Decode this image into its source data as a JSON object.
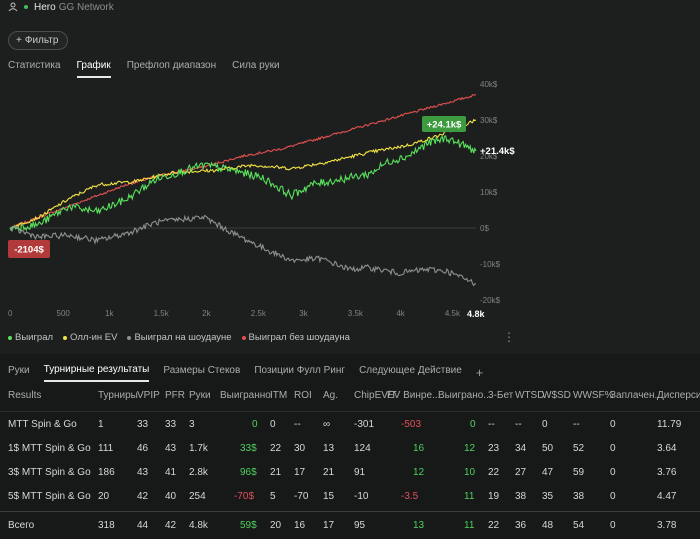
{
  "header": {
    "user": "Hero",
    "network": "GG Network"
  },
  "filter_label": "Фильтр",
  "top_tabs": [
    "Статистика",
    "График",
    "Префлоп диапазон",
    "Сила руки"
  ],
  "active_top_tab": 1,
  "legend": [
    {
      "label": "Выиграл",
      "color": "#59e15c"
    },
    {
      "label": "Олл-ин EV",
      "color": "#f3e343"
    },
    {
      "label": "Выиграл на шоудауне",
      "color": "#8f8f8f"
    },
    {
      "label": "Выиграл без шоудауна",
      "color": "#e45050"
    }
  ],
  "chart_data": {
    "type": "line",
    "x_ticks": [
      "0",
      "500",
      "1k",
      "1.5k",
      "2k",
      "2.5k",
      "3k",
      "3.5k",
      "4k",
      "4.5k"
    ],
    "x_end_label": "4.8k",
    "y_ticks": [
      "40k$",
      "30k$",
      "20k$",
      "10k$",
      "0$",
      "-10k$",
      "-20k$"
    ],
    "xlim": [
      0,
      4800
    ],
    "ylim": [
      -20000,
      40000
    ],
    "series": [
      {
        "name": "Выиграл без шоудауна",
        "color": "#e45050",
        "points": [
          [
            0,
            0
          ],
          [
            400,
            4000
          ],
          [
            800,
            8000
          ],
          [
            1200,
            12000
          ],
          [
            1600,
            15000
          ],
          [
            2000,
            17000
          ],
          [
            2400,
            20000
          ],
          [
            2800,
            22000
          ],
          [
            3200,
            25000
          ],
          [
            3600,
            28000
          ],
          [
            4000,
            31000
          ],
          [
            4400,
            34000
          ],
          [
            4800,
            37000
          ]
        ]
      },
      {
        "name": "Олл-ин EV",
        "color": "#f3e343",
        "points": [
          [
            0,
            0
          ],
          [
            300,
            3000
          ],
          [
            600,
            8000
          ],
          [
            900,
            12000
          ],
          [
            1300,
            13000
          ],
          [
            1700,
            15500
          ],
          [
            2100,
            16000
          ],
          [
            2500,
            17500
          ],
          [
            2900,
            16500
          ],
          [
            3300,
            18500
          ],
          [
            3700,
            21000
          ],
          [
            4100,
            23000
          ],
          [
            4400,
            25500
          ],
          [
            4800,
            30000
          ]
        ]
      },
      {
        "name": "Выиграл",
        "color": "#59e15c",
        "points": [
          [
            0,
            0
          ],
          [
            300,
            1000
          ],
          [
            600,
            6000
          ],
          [
            900,
            4500
          ],
          [
            1200,
            8000
          ],
          [
            1500,
            13500
          ],
          [
            1800,
            16000
          ],
          [
            2000,
            17500
          ],
          [
            2300,
            16000
          ],
          [
            2600,
            14000
          ],
          [
            2900,
            9000
          ],
          [
            3100,
            12000
          ],
          [
            3400,
            13500
          ],
          [
            3700,
            15000
          ],
          [
            3900,
            18500
          ],
          [
            4100,
            20000
          ],
          [
            4300,
            23500
          ],
          [
            4500,
            25000
          ],
          [
            4800,
            21400
          ]
        ]
      },
      {
        "name": "Выиграл на шоудауне",
        "color": "#8f8f8f",
        "points": [
          [
            0,
            0
          ],
          [
            300,
            -2500
          ],
          [
            600,
            -2000
          ],
          [
            900,
            -3500
          ],
          [
            1200,
            -1500
          ],
          [
            1500,
            1500
          ],
          [
            1800,
            2500
          ],
          [
            2000,
            3000
          ],
          [
            2300,
            -1500
          ],
          [
            2600,
            -5500
          ],
          [
            2900,
            -9000
          ],
          [
            3200,
            -8500
          ],
          [
            3500,
            -11500
          ],
          [
            3700,
            -11000
          ],
          [
            4000,
            -12500
          ],
          [
            4300,
            -11500
          ],
          [
            4500,
            -12000
          ],
          [
            4800,
            -15500
          ]
        ]
      }
    ],
    "annotations": {
      "peak": "+24.1k$",
      "final": "+21.4k$",
      "low": "-2104$"
    }
  },
  "bottom_tabs": [
    "Руки",
    "Турнирные результаты",
    "Размеры Стеков",
    "Позиции Фулл Ринг",
    "Следующее Действие"
  ],
  "active_bottom_tab": 1,
  "table": {
    "headers": [
      "Results",
      "Турниры",
      "VPIP",
      "PFR",
      "Руки",
      "Выигранно",
      "ITM",
      "ROI",
      "Ag.",
      "ChipEV/T",
      "EV Винре...",
      "Выиграно...",
      "3-Бет",
      "WTSD",
      "W$SD",
      "WWSF%",
      "Заплачен...",
      "Дисперси..."
    ],
    "rows": [
      [
        "MTT Spin & Go",
        "1",
        "33",
        "33",
        "3",
        "0",
        "0",
        "--",
        "∞",
        "-301",
        "-503",
        "0",
        "--",
        "--",
        "0",
        "--",
        "0",
        "11.79"
      ],
      [
        "1$ MTT Spin & Go",
        "111",
        "46",
        "43",
        "1.7k",
        "33$",
        "22",
        "30",
        "13",
        "124",
        "16",
        "12",
        "23",
        "34",
        "50",
        "52",
        "0",
        "3.64"
      ],
      [
        "3$ MTT Spin & Go",
        "186",
        "43",
        "41",
        "2.8k",
        "96$",
        "21",
        "17",
        "21",
        "91",
        "12",
        "10",
        "22",
        "27",
        "47",
        "59",
        "0",
        "3.76"
      ],
      [
        "5$ MTT Spin & Go",
        "20",
        "42",
        "40",
        "254",
        "-70$",
        "5",
        "-70",
        "15",
        "-10",
        "-3.5",
        "11",
        "19",
        "38",
        "35",
        "38",
        "0",
        "4.47"
      ]
    ],
    "total": [
      "Всего",
      "318",
      "44",
      "42",
      "4.8k",
      "59$",
      "20",
      "16",
      "17",
      "95",
      "13",
      "11",
      "22",
      "36",
      "48",
      "54",
      "0",
      "3.78"
    ]
  }
}
